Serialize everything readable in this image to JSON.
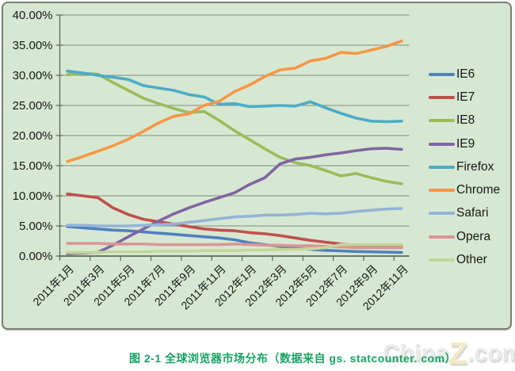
{
  "page": {
    "background": "#ffffff"
  },
  "caption": {
    "text": "图 2-1 全球浏览器市场分布（数据来自 gs. statcounter. com）",
    "color": "#18a263"
  },
  "watermark": {
    "part1": "China",
    "part2": "Z",
    "part3": ".com"
  },
  "chart_data": {
    "type": "line",
    "title": "",
    "xlabel": "",
    "ylabel": "",
    "ylim": [
      0,
      40
    ],
    "y_step": 5,
    "grid": true,
    "legend_position": "right",
    "style": {
      "plot_bg": "#d7e8d2",
      "frame_border": "#76816f",
      "gridline": "#828c82",
      "axis": "#5d675d",
      "tick_text": "#171717"
    },
    "y_tick_labels": [
      "40.00%",
      "35.00%",
      "30.00%",
      "25.00%",
      "20.00%",
      "15.00%",
      "10.00%",
      "5.00%",
      "0.00%"
    ],
    "x_tick_labels": [
      "2011年1月",
      "2011年3月",
      "2011年5月",
      "2011年7月",
      "2011年9月",
      "2011年11月",
      "2012年1月",
      "2012年3月",
      "2012年5月",
      "2012年7月",
      "2012年9月",
      "2012年11月"
    ],
    "categories": [
      "2011年1月",
      "2011年2月",
      "2011年3月",
      "2011年4月",
      "2011年5月",
      "2011年6月",
      "2011年7月",
      "2011年8月",
      "2011年9月",
      "2011年10月",
      "2011年11月",
      "2011年12月",
      "2012年1月",
      "2012年2月",
      "2012年3月",
      "2012年4月",
      "2012年5月",
      "2012年6月",
      "2012年7月",
      "2012年8月",
      "2012年9月",
      "2012年10月",
      "2012年11月"
    ],
    "series": [
      {
        "name": "IE6",
        "color": "#4F81BD",
        "values": [
          4.9,
          4.7,
          4.5,
          4.3,
          4.2,
          4.0,
          3.8,
          3.6,
          3.4,
          3.2,
          3.0,
          2.7,
          2.2,
          1.9,
          1.6,
          1.3,
          1.1,
          0.95,
          0.85,
          0.75,
          0.7,
          0.65,
          0.6
        ]
      },
      {
        "name": "IE7",
        "color": "#C0504D",
        "values": [
          10.3,
          10.0,
          9.7,
          8.0,
          6.9,
          6.1,
          5.7,
          5.3,
          4.9,
          4.5,
          4.3,
          4.2,
          3.9,
          3.7,
          3.4,
          3.0,
          2.6,
          2.3,
          2.0,
          1.8,
          1.7,
          1.6,
          1.5
        ]
      },
      {
        "name": "IE8",
        "color": "#9BBB59",
        "values": [
          30.1,
          30.3,
          30.2,
          28.8,
          27.5,
          26.2,
          25.3,
          24.5,
          23.8,
          24.0,
          22.5,
          20.8,
          19.3,
          17.8,
          16.4,
          15.5,
          15.0,
          14.2,
          13.3,
          13.7,
          13.0,
          12.4,
          12.0
        ]
      },
      {
        "name": "IE9",
        "color": "#8064A2",
        "values": [
          0.4,
          0.5,
          0.6,
          1.8,
          3.2,
          4.5,
          5.8,
          7.0,
          8.0,
          8.9,
          9.7,
          10.5,
          11.9,
          13.0,
          15.3,
          16.1,
          16.4,
          16.8,
          17.1,
          17.5,
          17.8,
          17.9,
          17.7
        ]
      },
      {
        "name": "Firefox",
        "color": "#4BACC6",
        "values": [
          30.7,
          30.4,
          30.0,
          29.7,
          29.3,
          28.3,
          27.9,
          27.5,
          26.8,
          26.4,
          25.2,
          25.3,
          24.8,
          24.9,
          25.0,
          24.9,
          25.6,
          24.6,
          23.7,
          22.9,
          22.4,
          22.3,
          22.4
        ]
      },
      {
        "name": "Chrome",
        "color": "#F79646",
        "values": [
          15.7,
          16.5,
          17.4,
          18.3,
          19.4,
          20.7,
          22.1,
          23.2,
          23.6,
          25.0,
          25.7,
          27.3,
          28.4,
          29.8,
          30.9,
          31.2,
          32.4,
          32.8,
          33.8,
          33.6,
          34.2,
          34.8,
          35.7
        ]
      },
      {
        "name": "Safari",
        "color": "#95B3D7",
        "values": [
          5.1,
          5.1,
          5.0,
          5.0,
          5.0,
          5.1,
          5.2,
          5.3,
          5.6,
          5.9,
          6.2,
          6.5,
          6.6,
          6.8,
          6.8,
          6.9,
          7.1,
          7.0,
          7.1,
          7.4,
          7.6,
          7.8,
          7.9
        ]
      },
      {
        "name": "Opera",
        "color": "#D99694",
        "values": [
          2.1,
          2.1,
          2.1,
          2.0,
          2.0,
          2.0,
          1.9,
          1.9,
          1.9,
          1.9,
          1.9,
          2.0,
          1.9,
          1.8,
          1.8,
          1.7,
          1.7,
          1.6,
          1.5,
          1.4,
          1.4,
          1.4,
          1.4
        ]
      },
      {
        "name": "Other",
        "color": "#C3D69B",
        "values": [
          0.6,
          0.6,
          0.6,
          0.7,
          0.7,
          0.7,
          0.8,
          0.8,
          0.8,
          0.9,
          0.9,
          0.9,
          1.0,
          1.0,
          1.1,
          1.1,
          1.2,
          1.4,
          1.9,
          1.9,
          1.9,
          1.9,
          1.9
        ]
      }
    ]
  }
}
